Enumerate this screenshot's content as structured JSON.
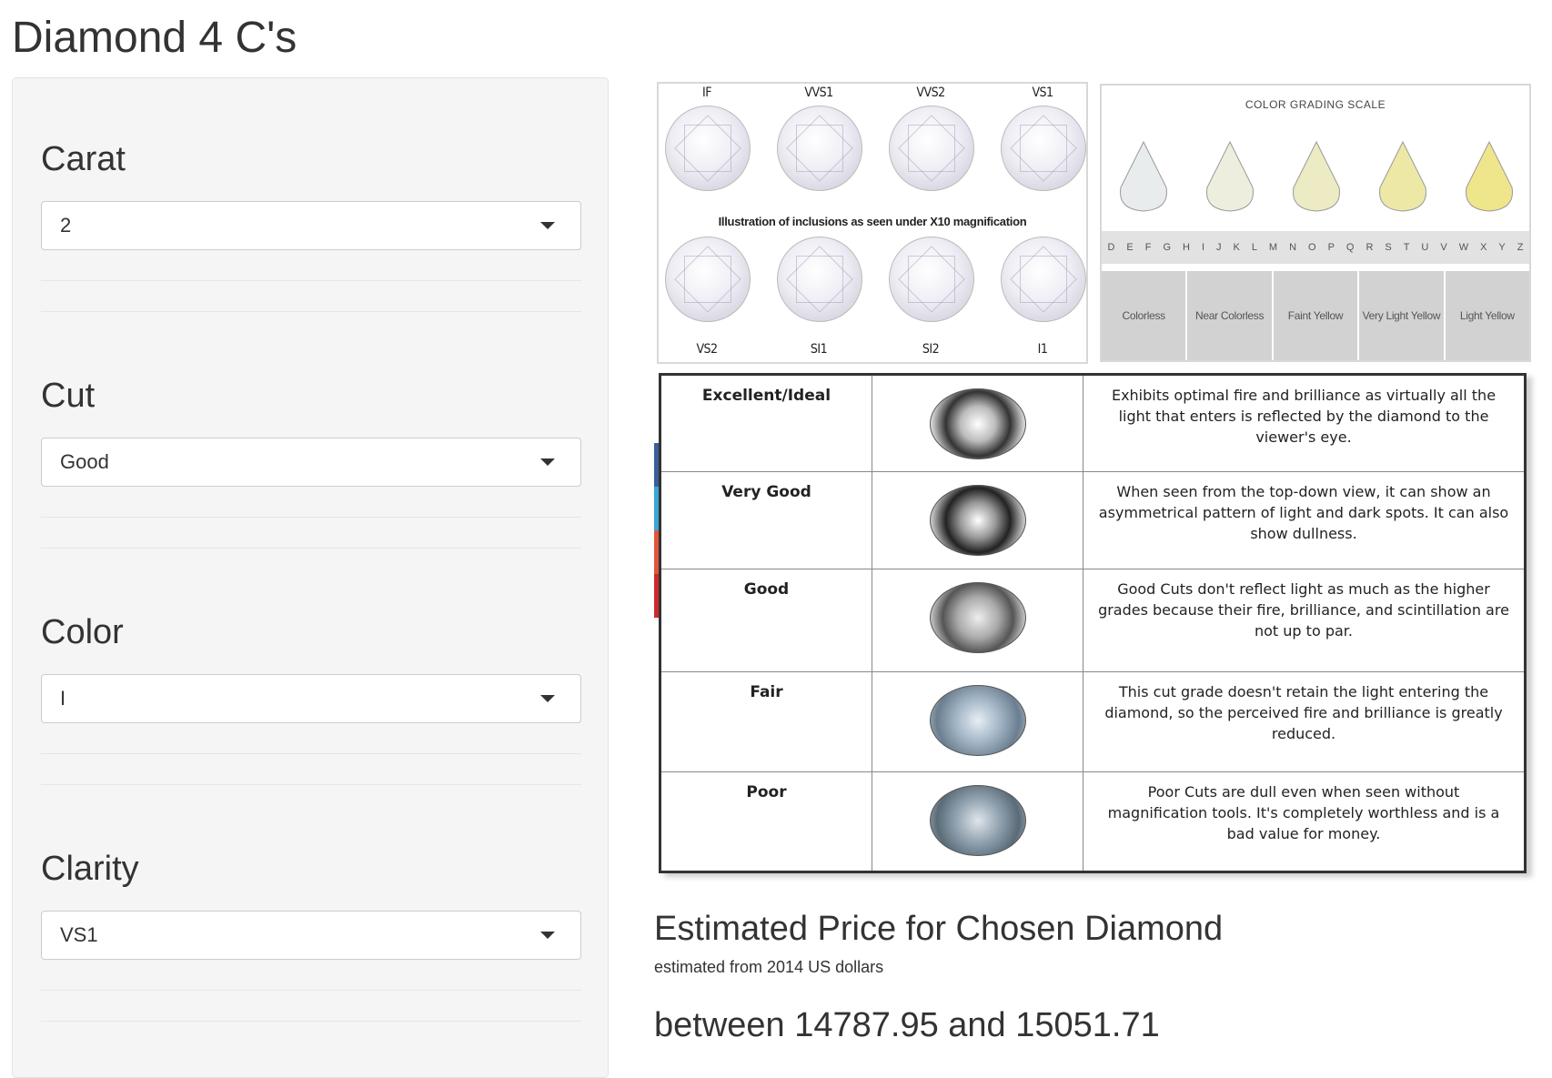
{
  "app_title": "Diamond 4 C's",
  "inputs": {
    "carat": {
      "label": "Carat",
      "value": "2"
    },
    "cut": {
      "label": "Cut",
      "value": "Good"
    },
    "color": {
      "label": "Color",
      "value": "I"
    },
    "clarity": {
      "label": "Clarity",
      "value": "VS1"
    }
  },
  "clarity_image": {
    "top_labels": [
      "IF",
      "VVS1",
      "VVS2",
      "VS1"
    ],
    "bottom_labels": [
      "VS2",
      "SI1",
      "SI2",
      "I1"
    ],
    "caption": "Illustration of inclusions as seen under X10 magnification"
  },
  "color_image": {
    "title": "COLOR GRADING SCALE",
    "letters": [
      "D",
      "E",
      "F",
      "G",
      "H",
      "I",
      "J",
      "K",
      "L",
      "M",
      "N",
      "O",
      "P",
      "Q",
      "R",
      "S",
      "T",
      "U",
      "V",
      "W",
      "X",
      "Y",
      "Z"
    ],
    "groups": [
      "Colorless",
      "Near Colorless",
      "Faint Yellow",
      "Very Light Yellow",
      "Light Yellow"
    ],
    "drop_colors": [
      "#e8ecec",
      "#eeeede",
      "#ecebc4",
      "#ede8a6",
      "#efe68c"
    ]
  },
  "cut_table": {
    "rows": [
      {
        "grade": "Excellent/Ideal",
        "desc": "Exhibits optimal fire and brilliance as virtually all the light that enters is reflected by the diamond to the viewer's eye."
      },
      {
        "grade": "Very Good",
        "desc": "When seen from the top-down view, it can show an asymmetrical pattern of light and dark spots. It can also show dullness."
      },
      {
        "grade": "Good",
        "desc": "Good Cuts don't reflect light as much as the higher grades because their fire, brilliance, and scintillation are not up to par."
      },
      {
        "grade": "Fair",
        "desc": "This cut grade doesn't retain the light entering the diamond, so the perceived fire and brilliance is greatly reduced."
      },
      {
        "grade": "Poor",
        "desc": "Poor Cuts are dull even when seen without magnification tools. It's completely worthless and is a bad value for money."
      }
    ],
    "accent_colors": [
      "#3a5f9a",
      "#3aa7d8",
      "#e0553b",
      "#cc2b2b"
    ]
  },
  "result": {
    "title": "Estimated Price for Chosen Diamond",
    "note": "estimated from 2014 US dollars",
    "value": "between 14787.95 and 15051.71"
  }
}
